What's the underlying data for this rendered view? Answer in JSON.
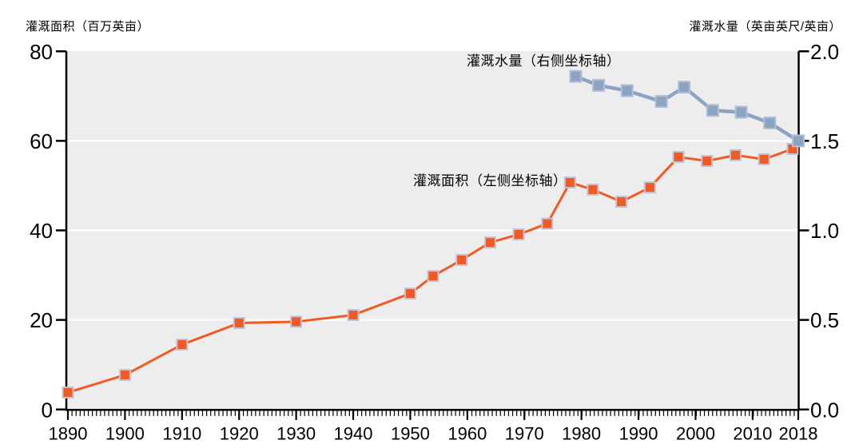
{
  "page": {
    "background": "#ffffff"
  },
  "chart_data": {
    "type": "line",
    "dual_axis": true,
    "left_axis_title": "灌溉面积（百万英亩）",
    "right_axis_title": "灌溉水量（英亩英尺/英亩）",
    "x_axis": {
      "min": 1890,
      "max": 2018,
      "major_ticks": [
        1890,
        1900,
        1910,
        1920,
        1930,
        1940,
        1950,
        1960,
        1970,
        1980,
        1990,
        2000,
        2010,
        2018
      ],
      "minor_ticks": "dense"
    },
    "left_axis": {
      "min": 0,
      "max": 80,
      "tick_values": [
        0,
        20,
        40,
        60,
        80
      ],
      "tick_labels": [
        "0",
        "20",
        "40",
        "60",
        "80"
      ],
      "gridline_values": [
        20,
        40,
        60
      ]
    },
    "right_axis": {
      "min": 0.0,
      "max": 2.0,
      "tick_values": [
        0,
        0.5,
        1.0,
        1.5,
        2.0
      ],
      "tick_labels": [
        "0.0",
        "0.5",
        "1.0",
        "1.5",
        "2.0"
      ]
    },
    "grid": "horizontal-white-lines",
    "legend_position": "inline-annotations",
    "plot_bg_color": "#ededed",
    "gridline_color": "#ffffff",
    "axis_color": "#000000",
    "series": [
      {
        "name": "灌溉面积（左侧坐标轴）",
        "axis": "left",
        "color": "#f15a22",
        "marker": "square",
        "marker_edge_color": "#bdc5d9",
        "x": [
          1890,
          1900,
          1910,
          1920,
          1930,
          1940,
          1950,
          1954,
          1959,
          1964,
          1969,
          1974,
          1978,
          1982,
          1987,
          1992,
          1997,
          2002,
          2007,
          2012,
          2017
        ],
        "values": [
          3.8,
          7.7,
          14.5,
          19.3,
          19.6,
          21.1,
          25.9,
          29.8,
          33.4,
          37.3,
          39.1,
          41.5,
          50.7,
          49.1,
          46.4,
          49.6,
          56.4,
          55.5,
          56.8,
          55.9,
          58.2
        ]
      },
      {
        "name": "灌溉水量（右侧坐标轴）",
        "axis": "right",
        "color": "#8ca4c4",
        "marker": "square",
        "marker_edge_color": "#b3bdd6",
        "x": [
          1979,
          1983,
          1988,
          1994,
          1998,
          2003,
          2008,
          2013,
          2018
        ],
        "values": [
          1.86,
          1.81,
          1.78,
          1.72,
          1.8,
          1.67,
          1.66,
          1.6,
          1.5
        ]
      }
    ],
    "annotations": [
      {
        "text": "灌溉水量（右侧坐标轴）",
        "target_series": "water-rate"
      },
      {
        "text": "灌溉面积（左侧坐标轴）",
        "target_series": "irrigated-area"
      }
    ]
  }
}
